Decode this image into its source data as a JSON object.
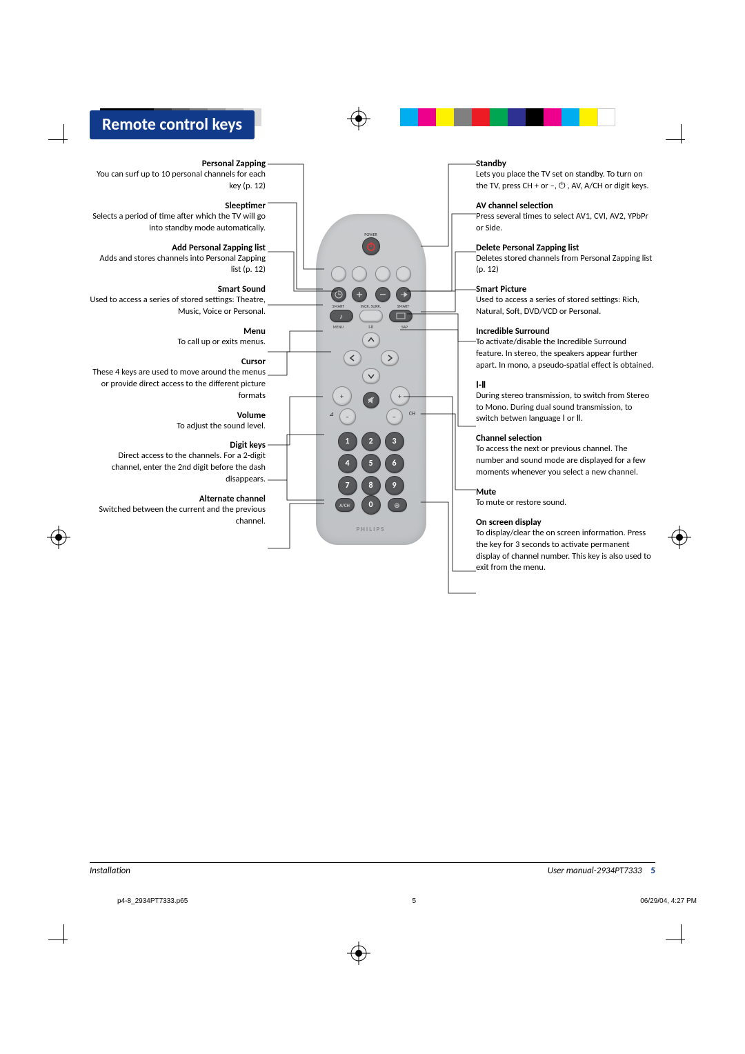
{
  "title": "Remote control keys",
  "left_sections": [
    {
      "heading": "Personal Zapping",
      "body": "You can surf up to 10 personal channels for each key (p. 12)"
    },
    {
      "heading": "Sleeptimer",
      "body": "Selects a period of time after which the TV will go into standby mode automatically."
    },
    {
      "heading": "Add Personal Zapping list",
      "body": "Adds and stores channels into Personal Zapping list (p. 12)"
    },
    {
      "heading": "Smart Sound",
      "body": "Used to access a series of stored settings: Theatre, Music, Voice or Personal."
    },
    {
      "heading": "Menu",
      "body": "To call up or exits menus."
    },
    {
      "heading": "Cursor",
      "body": "These 4 keys are used to move around the menus or provide direct access to the different picture formats"
    },
    {
      "heading": "Volume",
      "body": "To adjust the sound level."
    },
    {
      "heading": "Digit keys",
      "body": "Direct access to the channels. For a 2-digit channel, enter the 2nd digit before the dash disappears."
    },
    {
      "heading": "Alternate channel",
      "body": "Switched between the current and the previous channel."
    }
  ],
  "right_sections": [
    {
      "heading": "Standby",
      "body": "Lets you place the TV set on standby. To turn on the TV, press CH + or –, ⏻ , AV, A/CH or digit keys."
    },
    {
      "heading": "AV channel selection",
      "body": "Press several times to select AV1, CVI, AV2, YPbPr or Side."
    },
    {
      "heading": "Delete Personal Zapping list",
      "body": "Deletes stored channels from Personal Zapping list (p. 12)"
    },
    {
      "heading": "Smart Picture",
      "body": "Used to access a series of stored settings: Rich, Natural, Soft, DVD/VCD or Personal."
    },
    {
      "heading": "Incredible Surround",
      "body": "To activate/disable the Incredible Surround feature. In stereo, the speakers appear further apart. In mono, a pseudo-spatial effect is obtained."
    },
    {
      "heading": "Ⅰ-Ⅱ",
      "body": "During stereo transmission, to switch from Stereo to Mono. During dual sound transmission, to switch betwen language Ⅰ or Ⅱ."
    },
    {
      "heading": "Channel selection",
      "body": "To access the next or previous channel. The number and sound mode are displayed for a few moments whenever you select a new channel."
    },
    {
      "heading": "Mute",
      "body": "To mute or restore sound."
    },
    {
      "heading": "On screen display",
      "body": "To display/clear the on screen information. Press the key for 3 seconds to activate permanent display of channel number. This key is also used to exit from the menu."
    }
  ],
  "remote": {
    "labels": {
      "power": "POWER",
      "smart_l": "SMART",
      "incr": "INCR. SURR.",
      "smart_r": "SMART",
      "menu": "MENU",
      "sap": "SAP",
      "i_ii": "Ⅰ-Ⅱ",
      "vol": "",
      "ch": "CH",
      "brand": "PHILIPS",
      "ach": "A/CH",
      "osd": "⊕"
    },
    "digits": [
      "1",
      "2",
      "3",
      "4",
      "5",
      "6",
      "7",
      "8",
      "9",
      "0"
    ]
  },
  "footer": {
    "left": "Installation",
    "right": "User manual-2934PT7333",
    "page": "5"
  },
  "printline": {
    "file": "p4-8_2934PT7333.p65",
    "num": "5",
    "date": "06/29/04, 4:27 PM"
  },
  "colorbar_left": [
    "#000000",
    "#000000",
    "#000000",
    "#3a3a3a",
    "#5a5a5a",
    "#7a7a7a",
    "#9a9a9a",
    "#bababa",
    "#dadada"
  ],
  "colorbar_right": [
    "#00aeef",
    "#ec008c",
    "#fff200",
    "#808080",
    "#ed1c24",
    "#00a651",
    "#2e3192",
    "#000000",
    "#ec008c",
    "#00aeef",
    "#fff200",
    "#ffffff"
  ]
}
